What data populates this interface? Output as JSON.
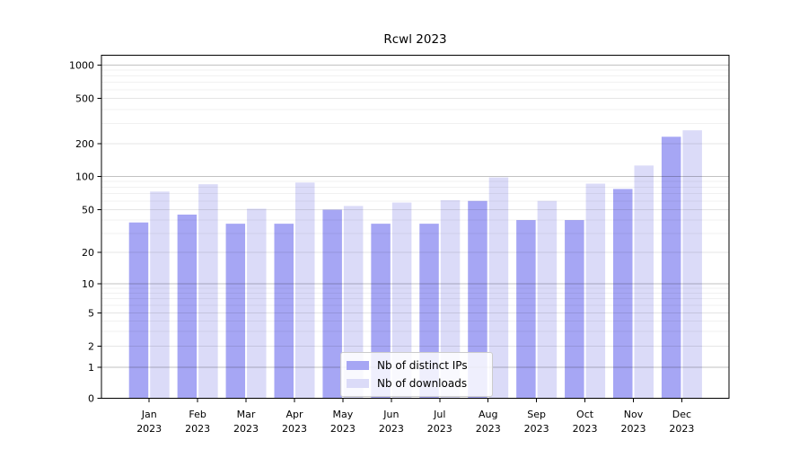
{
  "title": "Rcwl 2023",
  "legend": {
    "items": [
      {
        "label": "Nb of distinct IPs",
        "swatch": "dark-periwinkle"
      },
      {
        "label": "Nb of downloads",
        "swatch": "light-lavender"
      }
    ]
  },
  "colors": {
    "distinct_ips_bar": "#a6a6f4",
    "downloads_bar": "#dbdbf8",
    "axis": "#000000",
    "grid_major": "rgba(0,0,0,0.24)",
    "grid_mid": "rgba(0,0,0,0.10)",
    "grid_minor": "rgba(0,0,0,0.055)",
    "text": "#000000"
  },
  "chart_data": {
    "type": "bar",
    "title": "Rcwl 2023",
    "categories": [
      "Jan",
      "Feb",
      "Mar",
      "Apr",
      "May",
      "Jun",
      "Jul",
      "Aug",
      "Sep",
      "Oct",
      "Nov",
      "Dec"
    ],
    "category_year": "2023",
    "series": [
      {
        "name": "Nb of distinct IPs",
        "values": [
          38,
          45,
          37,
          37,
          50,
          37,
          37,
          60,
          40,
          40,
          77,
          230
        ]
      },
      {
        "name": "Nb of downloads",
        "values": [
          73,
          85,
          51,
          88,
          54,
          58,
          61,
          98,
          60,
          86,
          126,
          262
        ]
      }
    ],
    "xlabel": "",
    "ylabel": "",
    "yticks": [
      0,
      1,
      2,
      5,
      10,
      20,
      50,
      100,
      200,
      500,
      1000
    ],
    "ylim": [
      0,
      1250
    ],
    "yscale": "log-like (compressed linear segment near zero)",
    "grid": true,
    "legend_position": "lower center inside plot"
  }
}
